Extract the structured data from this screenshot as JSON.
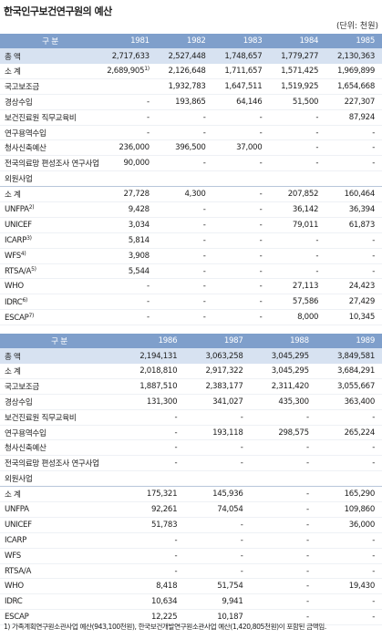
{
  "title": "한국인구보건연구원의 예산",
  "unit": "(단위: 천원)",
  "tables": [
    {
      "header": [
        "구 분",
        "1981",
        "1982",
        "1983",
        "1984",
        "1985"
      ],
      "total": {
        "label": "총 액",
        "cells": [
          "2,717,633",
          "2,527,448",
          "1,748,657",
          "1,779,277",
          "2,130,363"
        ]
      },
      "groups": [
        {
          "rows": [
            {
              "label": "소 계",
              "cells": [
                {
                  "text": "2,689,905",
                  "note": "1)"
                },
                "2,126,648",
                "1,711,657",
                "1,571,425",
                "1,969,899"
              ]
            },
            {
              "label": "국고보조금",
              "cells": [
                null,
                "1,932,783",
                "1,647,511",
                "1,519,925",
                "1,654,668"
              ]
            },
            {
              "label": "경상수입",
              "cells": [
                "-",
                "193,865",
                "64,146",
                "51,500",
                "227,307"
              ]
            },
            {
              "label": "보건진료원 직무교육비",
              "cells": [
                "-",
                "-",
                "-",
                "-",
                "87,924"
              ]
            },
            {
              "label": "연구용역수입",
              "cells": [
                "-",
                "-",
                "-",
                "-",
                "-"
              ]
            },
            {
              "label": "청사신축예산",
              "cells": [
                "236,000",
                "396,500",
                "37,000",
                "-",
                "-"
              ]
            },
            {
              "label": "전국의료망 편성조사 연구사업",
              "cells": [
                "90,000",
                "-",
                "-",
                "-",
                "-"
              ]
            }
          ]
        },
        {
          "title": "외원사업",
          "rows": [
            {
              "label": "소 계",
              "cells": [
                "27,728",
                "4,300",
                "-",
                "207,852",
                "160,464"
              ]
            },
            {
              "label": {
                "text": "UNFPA",
                "note": "2)"
              },
              "cells": [
                "9,428",
                "-",
                "-",
                "36,142",
                "36,394"
              ]
            },
            {
              "label": "UNICEF",
              "cells": [
                "3,034",
                "-",
                "-",
                "79,011",
                "61,873"
              ]
            },
            {
              "label": {
                "text": "ICARP",
                "note": "3)"
              },
              "cells": [
                "5,814",
                "-",
                "-",
                "-",
                "-"
              ]
            },
            {
              "label": {
                "text": "WFS",
                "note": "4)"
              },
              "cells": [
                "3,908",
                "-",
                "-",
                "-",
                "-"
              ]
            },
            {
              "label": {
                "text": "RTSA/A",
                "note": "5)"
              },
              "cells": [
                "5,544",
                "-",
                "-",
                "-",
                "-"
              ]
            },
            {
              "label": "WHO",
              "cells": [
                "-",
                "-",
                "-",
                "27,113",
                "24,423"
              ]
            },
            {
              "label": {
                "text": "IDRC",
                "note": "6)"
              },
              "cells": [
                "-",
                "-",
                "-",
                "57,586",
                "27,429"
              ]
            },
            {
              "label": {
                "text": "ESCAP",
                "note": "7)"
              },
              "cells": [
                "-",
                "-",
                "-",
                "8,000",
                "10,345"
              ]
            }
          ]
        }
      ]
    },
    {
      "header": [
        "구 분",
        "1986",
        "1987",
        "1988",
        "1989"
      ],
      "total": {
        "label": "총 액",
        "cells": [
          "2,194,131",
          "3,063,258",
          "3,045,295",
          "3,849,581"
        ]
      },
      "groups": [
        {
          "rows": [
            {
              "label": "소 계",
              "cells": [
                "2,018,810",
                "2,917,322",
                "3,045,295",
                "3,684,291"
              ]
            },
            {
              "label": "국고보조금",
              "cells": [
                "1,887,510",
                "2,383,177",
                "2,311,420",
                "3,055,667"
              ]
            },
            {
              "label": "경상수입",
              "cells": [
                "131,300",
                "341,027",
                "435,300",
                "363,400"
              ]
            },
            {
              "label": "보건진료원 직무교육비",
              "cells": [
                "-",
                "-",
                "-",
                "-"
              ]
            },
            {
              "label": "연구용역수입",
              "cells": [
                "-",
                "193,118",
                "298,575",
                "265,224"
              ]
            },
            {
              "label": "청사신축예산",
              "cells": [
                "-",
                "-",
                "-",
                "-"
              ]
            },
            {
              "label": "전국의료망 편성조사 연구사업",
              "cells": [
                "-",
                "-",
                "-",
                "-"
              ]
            }
          ]
        },
        {
          "title": "외원사업",
          "rows": [
            {
              "label": "소 계",
              "cells": [
                "175,321",
                "145,936",
                "-",
                "165,290"
              ]
            },
            {
              "label": "UNFPA",
              "cells": [
                "92,261",
                "74,054",
                "-",
                "109,860"
              ]
            },
            {
              "label": "UNICEF",
              "cells": [
                "51,783",
                "-",
                "-",
                "36,000"
              ]
            },
            {
              "label": "ICARP",
              "cells": [
                "-",
                "-",
                "-",
                "-"
              ]
            },
            {
              "label": "WFS",
              "cells": [
                "-",
                "-",
                "-",
                "-"
              ]
            },
            {
              "label": "RTSA/A",
              "cells": [
                "-",
                "-",
                "-",
                "-"
              ]
            },
            {
              "label": "WHO",
              "cells": [
                "8,418",
                "51,754",
                "-",
                "19,430"
              ]
            },
            {
              "label": "IDRC",
              "cells": [
                "10,634",
                "9,941",
                "-",
                "-"
              ]
            },
            {
              "label": "ESCAP",
              "cells": [
                "12,225",
                "10,187",
                "-",
                "-"
              ]
            }
          ]
        }
      ]
    }
  ],
  "footnote": "1) 가족계획연구원소관사업 예산(943,100천원), 한국보건개발연구원소관사업 예산(1,420,805천원)이 포함된 금액임."
}
